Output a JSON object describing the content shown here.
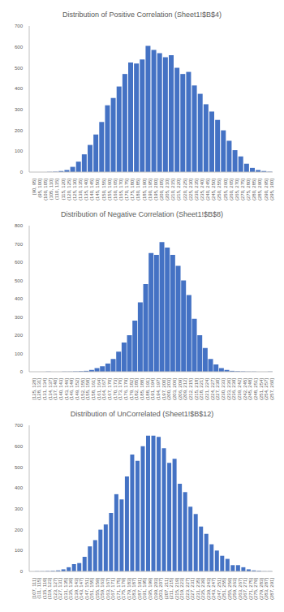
{
  "chart_data": [
    {
      "type": "bar",
      "title": "Distribution of Positive Correlation (Sheet1!$B$4)",
      "categories": [
        "[90, 95]",
        "(95, 100]",
        "(100, 105]",
        "(105, 110]",
        "(110, 115]",
        "(115, 120]",
        "(120, 125]",
        "(125, 130]",
        "(130, 135]",
        "(135, 140]",
        "(140, 145]",
        "(145, 150]",
        "(150, 155]",
        "(155, 160]",
        "(160, 165]",
        "(165, 170]",
        "(170, 175]",
        "(175, 180]",
        "(180, 185]",
        "(185, 190]",
        "(190, 195]",
        "(195, 200]",
        "(200, 205]",
        "(205, 210]",
        "(210, 215]",
        "(215, 220]",
        "(220, 225]",
        "(225, 230]",
        "(230, 235]",
        "(235, 240]",
        "(240, 245]",
        "(245, 250]",
        "(250, 255]",
        "(255, 260]",
        "(260, 265]",
        "(265, 270]",
        "(270, 275]",
        "(275, 280]",
        "(280, 285]",
        "(285, 290]",
        "(290, 295]",
        "(295, 300]"
      ],
      "values": [
        0,
        0,
        0,
        1,
        2,
        5,
        10,
        25,
        50,
        85,
        130,
        180,
        240,
        320,
        355,
        410,
        470,
        525,
        520,
        540,
        605,
        585,
        570,
        550,
        560,
        500,
        470,
        480,
        415,
        375,
        325,
        290,
        250,
        200,
        150,
        105,
        75,
        40,
        20,
        10,
        5,
        2
      ],
      "color": "#4472c4",
      "ylim": [
        0,
        700
      ],
      "yticks": [
        0,
        100,
        200,
        300,
        400,
        500,
        600,
        700
      ],
      "grid": false
    },
    {
      "type": "bar",
      "title": "Distribution of Negative Correlation (Sheet1!$B$8)",
      "categories": [
        "[125, 128]",
        "(128, 131]",
        "(131, 134]",
        "(134, 137]",
        "(137, 140]",
        "(140, 143]",
        "(143, 146]",
        "(146, 149]",
        "(149, 152]",
        "(152, 155]",
        "(155, 158]",
        "(158, 161]",
        "(161, 164]",
        "(164, 167]",
        "(167, 170]",
        "(170, 173]",
        "(173, 176]",
        "(176, 179]",
        "(179, 182]",
        "(182, 185]",
        "(185, 188]",
        "(188, 191]",
        "(191, 194]",
        "(194, 197]",
        "(197, 200]",
        "(200, 203]",
        "(203, 206]",
        "(206, 209]",
        "(209, 212]",
        "(212, 215]",
        "(215, 218]",
        "(218, 221]",
        "(221, 224]",
        "(224, 227]",
        "(227, 230]",
        "(230, 233]",
        "(233, 236]",
        "(236, 239]",
        "(239, 242]",
        "(242, 245]",
        "(245, 248]",
        "(248, 251]",
        "(251, 254]",
        "(254, 257]",
        "(257, 260]"
      ],
      "values": [
        0,
        0,
        0,
        1,
        0,
        0,
        1,
        1,
        2,
        3,
        5,
        10,
        20,
        30,
        45,
        70,
        110,
        160,
        200,
        280,
        380,
        480,
        650,
        640,
        710,
        680,
        640,
        580,
        500,
        420,
        290,
        200,
        130,
        70,
        40,
        20,
        10,
        5,
        3,
        2,
        1,
        1,
        0,
        0,
        1
      ],
      "color": "#4472c4",
      "ylim": [
        0,
        800
      ],
      "yticks": [
        0,
        100,
        200,
        300,
        400,
        500,
        600,
        700,
        800
      ],
      "grid": false
    },
    {
      "type": "bar",
      "title": "Distribution of UnCorrelated (Sheet1!$B$12)",
      "categories": [
        "[107, 111]",
        "(111, 115]",
        "(115, 119]",
        "(119, 123]",
        "(123, 127]",
        "(127, 131]",
        "(131, 135]",
        "(135, 139]",
        "(139, 143]",
        "(143, 147]",
        "(147, 151]",
        "(151, 155]",
        "(155, 159]",
        "(159, 163]",
        "(163, 167]",
        "(167, 171]",
        "(171, 175]",
        "(175, 179]",
        "(179, 183]",
        "(183, 187]",
        "(187, 191]",
        "(191, 195]",
        "(195, 199]",
        "(199, 203]",
        "(203, 207]",
        "(207, 211]",
        "(211, 215]",
        "(215, 219]",
        "(219, 223]",
        "(223, 227]",
        "(227, 231]",
        "(231, 235]",
        "(235, 239]",
        "(239, 243]",
        "(243, 247]",
        "(247, 251]",
        "(251, 255]",
        "(255, 259]",
        "(259, 263]",
        "(263, 267]",
        "(267, 271]",
        "(271, 275]",
        "(275, 279]",
        "(279, 283]",
        "(283, 287]",
        "(287, 291]"
      ],
      "values": [
        0,
        1,
        1,
        2,
        3,
        5,
        10,
        20,
        35,
        40,
        70,
        120,
        150,
        200,
        225,
        280,
        370,
        345,
        455,
        560,
        530,
        600,
        650,
        650,
        645,
        590,
        520,
        540,
        420,
        380,
        310,
        275,
        215,
        180,
        130,
        100,
        75,
        60,
        30,
        30,
        20,
        10,
        5,
        3,
        1,
        1
      ],
      "color": "#4472c4",
      "ylim": [
        0,
        700
      ],
      "yticks": [
        0,
        100,
        200,
        300,
        400,
        500,
        600,
        700
      ],
      "grid": false
    }
  ]
}
